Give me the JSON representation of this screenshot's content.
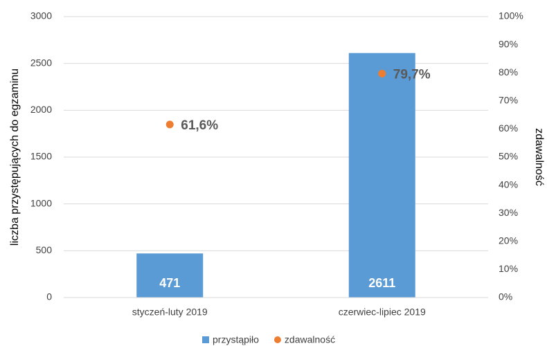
{
  "chart_data": {
    "type": "bar",
    "categories": [
      "styczeń-luty 2019",
      "czerwiec-lipiec 2019"
    ],
    "series": [
      {
        "name": "przystąpiło",
        "color": "#5b9bd5",
        "values": [
          471,
          2611
        ]
      },
      {
        "name": "zdawalność",
        "color": "#ed7d31",
        "type": "scatter",
        "axis": "y2",
        "values": [
          61.6,
          79.7
        ],
        "value_labels": [
          "61,6%",
          "79,7%"
        ]
      }
    ],
    "ylabel": "liczba przystępujących do egzaminu",
    "y2label": "zdawalność",
    "ylim": [
      0,
      3000
    ],
    "yticks": [
      0,
      500,
      1000,
      1500,
      2000,
      2500,
      3000
    ],
    "y2lim": [
      0,
      100
    ],
    "y2ticks": [
      {
        "value": 0,
        "label": "0%"
      },
      {
        "value": 10,
        "label": "10%"
      },
      {
        "value": 20,
        "label": "20%"
      },
      {
        "value": 30,
        "label": "30%"
      },
      {
        "value": 40,
        "label": "40%"
      },
      {
        "value": 50,
        "label": "50%"
      },
      {
        "value": 60,
        "label": "60%"
      },
      {
        "value": 70,
        "label": "70%"
      },
      {
        "value": 80,
        "label": "80%"
      },
      {
        "value": 90,
        "label": "90%"
      },
      {
        "value": 100,
        "label": "100%"
      }
    ],
    "grid": true,
    "legend": "bottom"
  }
}
